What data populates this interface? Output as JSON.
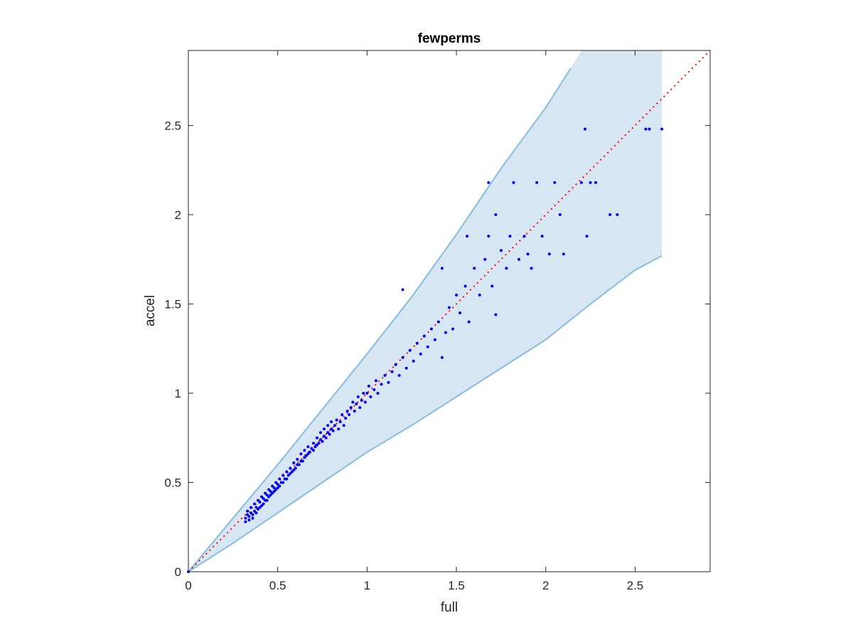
{
  "chart_data": {
    "type": "scatter",
    "title": "fewperms",
    "xlabel": "full",
    "ylabel": "accel",
    "xlim": [
      0,
      2.92
    ],
    "ylim": [
      0,
      2.92
    ],
    "xticks": [
      0,
      0.5,
      1,
      1.5,
      2,
      2.5
    ],
    "yticks": [
      0,
      0.5,
      1,
      1.5,
      2,
      2.5
    ],
    "xtick_labels": [
      "0",
      "0.5",
      "1",
      "1.5",
      "2",
      "2.5"
    ],
    "ytick_labels": [
      "0",
      "0.5",
      "1",
      "1.5",
      "2",
      "2.5"
    ],
    "grid": false,
    "colors": {
      "points": "#0000ff",
      "band_fill": "#d6e7f3",
      "band_edge": "#85bde0",
      "diagonal": "#ff0000",
      "axes": "#262626"
    },
    "band": {
      "upper": [
        [
          0,
          0
        ],
        [
          0.25,
          0.3
        ],
        [
          0.5,
          0.6
        ],
        [
          0.75,
          0.91
        ],
        [
          1,
          1.22
        ],
        [
          1.25,
          1.54
        ],
        [
          1.5,
          1.89
        ],
        [
          1.75,
          2.26
        ],
        [
          2,
          2.6
        ],
        [
          2.14,
          2.82
        ],
        [
          2.2,
          2.92
        ],
        [
          2.65,
          2.92
        ]
      ],
      "lower": [
        [
          2.65,
          1.77
        ],
        [
          2.5,
          1.69
        ],
        [
          2.25,
          1.5
        ],
        [
          2,
          1.3
        ],
        [
          1.75,
          1.14
        ],
        [
          1.5,
          0.98
        ],
        [
          1.25,
          0.82
        ],
        [
          1,
          0.67
        ],
        [
          0.75,
          0.5
        ],
        [
          0.5,
          0.33
        ],
        [
          0.25,
          0.16
        ],
        [
          0,
          0
        ]
      ]
    },
    "diagonal": [
      [
        0,
        0
      ],
      [
        2.92,
        2.92
      ]
    ],
    "series": [
      {
        "points": [
          [
            0,
            0
          ],
          [
            0.32,
            0.28
          ],
          [
            0.32,
            0.3
          ],
          [
            0.33,
            0.32
          ],
          [
            0.33,
            0.34
          ],
          [
            0.34,
            0.29
          ],
          [
            0.34,
            0.31
          ],
          [
            0.35,
            0.33
          ],
          [
            0.35,
            0.36
          ],
          [
            0.36,
            0.3
          ],
          [
            0.36,
            0.32
          ],
          [
            0.37,
            0.34
          ],
          [
            0.37,
            0.38
          ],
          [
            0.38,
            0.33
          ],
          [
            0.38,
            0.36
          ],
          [
            0.39,
            0.35
          ],
          [
            0.39,
            0.4
          ],
          [
            0.4,
            0.36
          ],
          [
            0.4,
            0.39
          ],
          [
            0.41,
            0.37
          ],
          [
            0.41,
            0.42
          ],
          [
            0.42,
            0.38
          ],
          [
            0.42,
            0.41
          ],
          [
            0.43,
            0.4
          ],
          [
            0.43,
            0.44
          ],
          [
            0.44,
            0.4
          ],
          [
            0.44,
            0.43
          ],
          [
            0.45,
            0.42
          ],
          [
            0.45,
            0.46
          ],
          [
            0.46,
            0.43
          ],
          [
            0.46,
            0.45
          ],
          [
            0.47,
            0.44
          ],
          [
            0.47,
            0.48
          ],
          [
            0.48,
            0.45
          ],
          [
            0.48,
            0.47
          ],
          [
            0.49,
            0.46
          ],
          [
            0.49,
            0.5
          ],
          [
            0.5,
            0.47
          ],
          [
            0.5,
            0.49
          ],
          [
            0.51,
            0.48
          ],
          [
            0.51,
            0.52
          ],
          [
            0.52,
            0.5
          ],
          [
            0.53,
            0.5
          ],
          [
            0.53,
            0.54
          ],
          [
            0.54,
            0.52
          ],
          [
            0.55,
            0.52
          ],
          [
            0.55,
            0.56
          ],
          [
            0.56,
            0.54
          ],
          [
            0.57,
            0.55
          ],
          [
            0.57,
            0.58
          ],
          [
            0.58,
            0.56
          ],
          [
            0.59,
            0.57
          ],
          [
            0.59,
            0.61
          ],
          [
            0.6,
            0.58
          ],
          [
            0.61,
            0.6
          ],
          [
            0.61,
            0.63
          ],
          [
            0.62,
            0.6
          ],
          [
            0.63,
            0.62
          ],
          [
            0.63,
            0.66
          ],
          [
            0.64,
            0.62
          ],
          [
            0.65,
            0.64
          ],
          [
            0.65,
            0.68
          ],
          [
            0.66,
            0.65
          ],
          [
            0.67,
            0.66
          ],
          [
            0.67,
            0.7
          ],
          [
            0.68,
            0.67
          ],
          [
            0.69,
            0.69
          ],
          [
            0.7,
            0.68
          ],
          [
            0.7,
            0.72
          ],
          [
            0.71,
            0.7
          ],
          [
            0.72,
            0.71
          ],
          [
            0.72,
            0.75
          ],
          [
            0.73,
            0.72
          ],
          [
            0.74,
            0.74
          ],
          [
            0.74,
            0.78
          ],
          [
            0.75,
            0.73
          ],
          [
            0.76,
            0.76
          ],
          [
            0.76,
            0.8
          ],
          [
            0.77,
            0.75
          ],
          [
            0.78,
            0.78
          ],
          [
            0.78,
            0.82
          ],
          [
            0.79,
            0.77
          ],
          [
            0.8,
            0.8
          ],
          [
            0.8,
            0.84
          ],
          [
            0.81,
            0.79
          ],
          [
            0.82,
            0.82
          ],
          [
            0.83,
            0.85
          ],
          [
            0.84,
            0.8
          ],
          [
            0.85,
            0.84
          ],
          [
            0.86,
            0.88
          ],
          [
            0.87,
            0.82
          ],
          [
            0.88,
            0.86
          ],
          [
            0.89,
            0.9
          ],
          [
            0.9,
            0.88
          ],
          [
            0.91,
            0.92
          ],
          [
            0.92,
            0.95
          ],
          [
            0.93,
            0.9
          ],
          [
            0.94,
            0.94
          ],
          [
            0.95,
            0.98
          ],
          [
            0.96,
            0.92
          ],
          [
            0.97,
            0.96
          ],
          [
            0.98,
            1.0
          ],
          [
            0.99,
            0.95
          ],
          [
            1.0,
            1.0
          ],
          [
            1.01,
            1.04
          ],
          [
            1.02,
            0.98
          ],
          [
            1.04,
            1.02
          ],
          [
            1.05,
            1.07
          ],
          [
            1.06,
            1.0
          ],
          [
            1.08,
            1.05
          ],
          [
            1.1,
            1.1
          ],
          [
            1.12,
            1.06
          ],
          [
            1.14,
            1.12
          ],
          [
            1.16,
            1.16
          ],
          [
            1.18,
            1.1
          ],
          [
            1.2,
            1.2
          ],
          [
            1.22,
            1.14
          ],
          [
            1.24,
            1.24
          ],
          [
            1.26,
            1.18
          ],
          [
            1.28,
            1.28
          ],
          [
            1.3,
            1.22
          ],
          [
            1.32,
            1.32
          ],
          [
            1.34,
            1.26
          ],
          [
            1.36,
            1.36
          ],
          [
            1.38,
            1.3
          ],
          [
            1.4,
            1.4
          ],
          [
            1.42,
            1.2
          ],
          [
            1.44,
            1.34
          ],
          [
            1.46,
            1.48
          ],
          [
            1.48,
            1.36
          ],
          [
            1.5,
            1.55
          ],
          [
            1.52,
            1.45
          ],
          [
            1.55,
            1.6
          ],
          [
            1.57,
            1.4
          ],
          [
            1.6,
            1.7
          ],
          [
            1.63,
            1.55
          ],
          [
            1.66,
            1.75
          ],
          [
            1.7,
            1.6
          ],
          [
            1.72,
            1.44
          ],
          [
            1.75,
            1.8
          ],
          [
            1.78,
            1.7
          ],
          [
            1.8,
            1.88
          ],
          [
            1.82,
            2.18
          ],
          [
            1.85,
            1.75
          ],
          [
            1.88,
            1.88
          ],
          [
            1.9,
            1.78
          ],
          [
            1.92,
            1.7
          ],
          [
            1.95,
            2.18
          ],
          [
            1.98,
            1.88
          ],
          [
            2.02,
            1.78
          ],
          [
            2.05,
            2.18
          ],
          [
            2.08,
            2.0
          ],
          [
            2.1,
            1.78
          ],
          [
            2.2,
            2.18
          ],
          [
            2.22,
            2.48
          ],
          [
            2.23,
            1.88
          ],
          [
            2.25,
            2.18
          ],
          [
            2.28,
            2.18
          ],
          [
            2.36,
            2.0
          ],
          [
            2.4,
            2.0
          ],
          [
            2.56,
            2.48
          ],
          [
            2.58,
            2.48
          ],
          [
            2.65,
            2.48
          ],
          [
            1.2,
            1.58
          ],
          [
            1.42,
            1.7
          ],
          [
            1.56,
            1.88
          ],
          [
            1.68,
            1.88
          ],
          [
            1.72,
            2.0
          ],
          [
            1.68,
            2.18
          ]
        ]
      }
    ]
  }
}
